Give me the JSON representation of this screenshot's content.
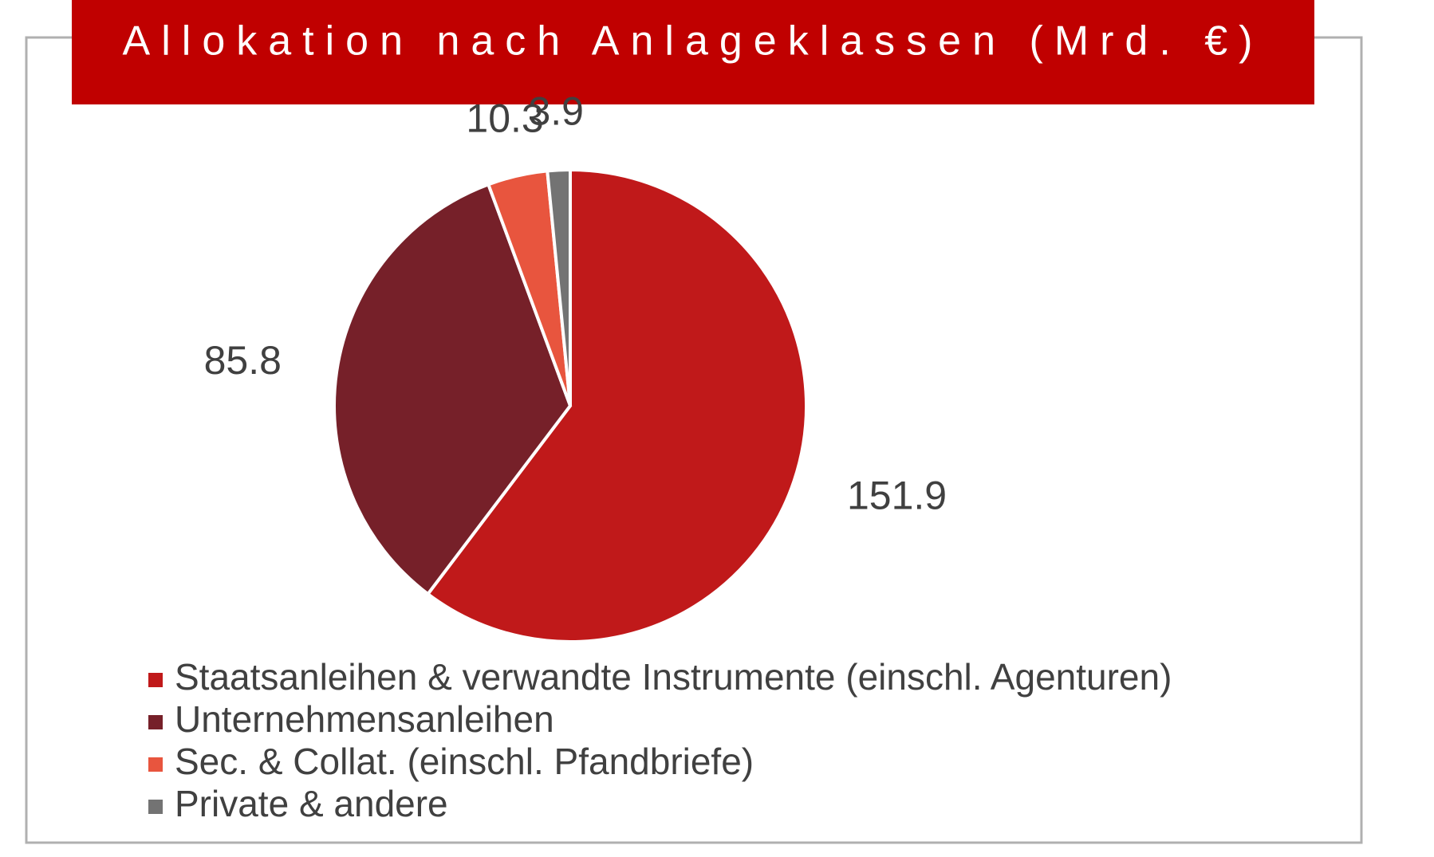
{
  "chart_data": {
    "type": "pie",
    "title": "Allokation nach Anlageklassen (Mrd. €)",
    "categories": [
      "Staatsanleihen & verwandte Instrumente (einschl. Agenturen)",
      "Unternehmensanleihen",
      "Sec. & Collat. (einschl. Pfandbriefe)",
      "Private & andere"
    ],
    "values": [
      151.9,
      85.8,
      10.3,
      3.9
    ],
    "colors": [
      "#c0191a",
      "#762029",
      "#e8553e",
      "#737373"
    ],
    "legend": "bottom"
  }
}
